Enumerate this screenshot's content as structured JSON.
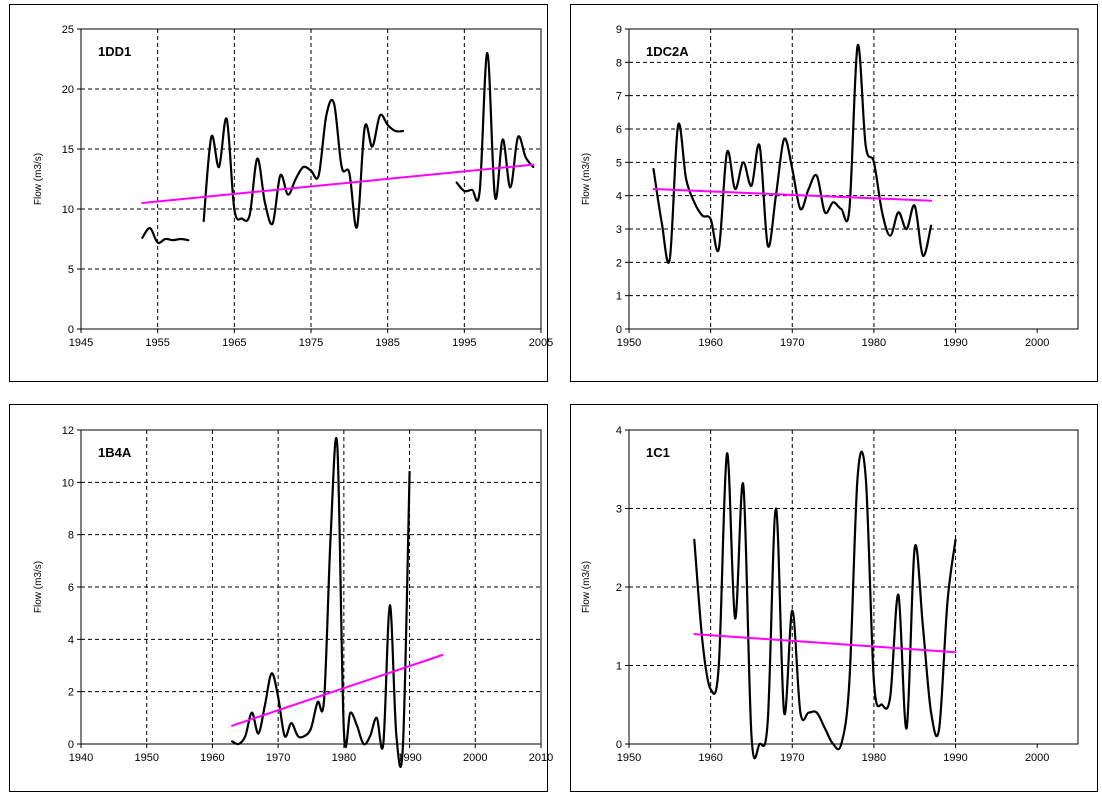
{
  "chart_data": [
    {
      "type": "line",
      "title": "1DD1",
      "ylabel": "Flow (m3/s)",
      "xlim": [
        1945,
        2005
      ],
      "ylim": [
        0,
        25
      ],
      "x_ticks": [
        1945,
        1955,
        1965,
        1975,
        1985,
        1995,
        2005
      ],
      "y_ticks": [
        0,
        5,
        10,
        15,
        20,
        25
      ],
      "grid": true,
      "series": [
        {
          "color": "#000000",
          "segments": [
            {
              "x": [
                1953,
                1954,
                1955,
                1956,
                1957,
                1958,
                1959
              ],
              "y": [
                7.6,
                8.4,
                7.2,
                7.5,
                7.4,
                7.5,
                7.4
              ]
            },
            {
              "x": [
                1961,
                1962,
                1963,
                1964,
                1965,
                1966,
                1967,
                1968,
                1969,
                1970,
                1971,
                1972,
                1973,
                1974,
                1975,
                1976,
                1977,
                1978,
                1979,
                1980,
                1981,
                1982,
                1983,
                1984,
                1985,
                1986,
                1987
              ],
              "y": [
                9.0,
                16.0,
                13.5,
                17.5,
                10.0,
                9.2,
                9.5,
                14.2,
                10.5,
                8.8,
                12.8,
                11.2,
                12.5,
                13.5,
                13.2,
                12.8,
                17.8,
                18.8,
                13.5,
                13.0,
                8.5,
                16.8,
                15.2,
                17.8,
                17.0,
                16.5,
                16.5
              ]
            },
            {
              "x": [
                1994,
                1995,
                1996,
                1997,
                1998,
                1999,
                2000,
                2001,
                2002,
                2003,
                2004
              ],
              "y": [
                12.2,
                11.5,
                11.6,
                11.5,
                23.0,
                11.0,
                15.8,
                11.8,
                16.0,
                14.3,
                13.5
              ]
            }
          ]
        },
        {
          "color": "#ff00ff",
          "segments": [
            {
              "x": [
                1953,
                2004
              ],
              "y": [
                10.5,
                13.7
              ]
            }
          ]
        }
      ]
    },
    {
      "type": "line",
      "title": "1DC2A",
      "ylabel": "Flow (m3/s)",
      "xlim": [
        1950,
        2005
      ],
      "ylim": [
        0,
        9
      ],
      "x_ticks": [
        1950,
        1960,
        1970,
        1980,
        1990,
        2000
      ],
      "y_ticks": [
        0,
        1,
        2,
        3,
        4,
        5,
        6,
        7,
        8,
        9
      ],
      "grid": true,
      "series": [
        {
          "color": "#000000",
          "segments": [
            {
              "x": [
                1953,
                1954,
                1955,
                1956,
                1957,
                1958,
                1959,
                1960,
                1961,
                1962,
                1963,
                1964,
                1965,
                1966,
                1967,
                1968,
                1969,
                1970,
                1971,
                1972,
                1973,
                1974,
                1975,
                1976,
                1977,
                1978,
                1979,
                1980,
                1981,
                1982,
                1983,
                1984,
                1985,
                1986,
                1987
              ],
              "y": [
                4.8,
                3.2,
                2.1,
                6.1,
                4.5,
                3.8,
                3.4,
                3.3,
                2.4,
                5.3,
                4.2,
                5.0,
                4.3,
                5.5,
                2.5,
                4.0,
                5.7,
                4.8,
                3.6,
                4.2,
                4.6,
                3.5,
                3.8,
                3.6,
                3.6,
                8.5,
                5.5,
                5.0,
                3.5,
                2.8,
                3.5,
                3.0,
                3.7,
                2.2,
                3.1
              ]
            }
          ]
        },
        {
          "color": "#ff00ff",
          "segments": [
            {
              "x": [
                1953,
                1987
              ],
              "y": [
                4.2,
                3.85
              ]
            }
          ]
        }
      ]
    },
    {
      "type": "line",
      "title": "1B4A",
      "ylabel": "Flow (m3/s)",
      "xlim": [
        1940,
        2010
      ],
      "ylim": [
        0,
        12
      ],
      "x_ticks": [
        1940,
        1950,
        1960,
        1970,
        1980,
        1990,
        2000,
        2010
      ],
      "y_ticks": [
        0,
        2,
        4,
        6,
        8,
        10,
        12
      ],
      "grid": true,
      "series": [
        {
          "color": "#000000",
          "segments": [
            {
              "x": [
                1963,
                1964,
                1965,
                1966,
                1967,
                1968,
                1969,
                1970,
                1971,
                1972,
                1973,
                1974,
                1975,
                1976,
                1977,
                1978,
                1979,
                1980,
                1981,
                1982,
                1983,
                1984,
                1985,
                1986,
                1987,
                1988,
                1989,
                1990
              ],
              "y": [
                0.1,
                0.0,
                0.3,
                1.2,
                0.4,
                1.5,
                2.7,
                1.8,
                0.3,
                0.8,
                0.3,
                0.3,
                0.6,
                1.6,
                1.7,
                8.0,
                11.4,
                0.5,
                1.2,
                0.7,
                0.0,
                0.3,
                1.0,
                0.0,
                5.3,
                0.3,
                0.0,
                10.4
              ]
            }
          ]
        },
        {
          "color": "#ff00ff",
          "segments": [
            {
              "x": [
                1963,
                1995
              ],
              "y": [
                0.7,
                3.4
              ]
            }
          ]
        }
      ]
    },
    {
      "type": "line",
      "title": "1C1",
      "ylabel": "Flow (m3/s)",
      "xlim": [
        1950,
        2005
      ],
      "ylim": [
        0,
        4
      ],
      "x_ticks": [
        1950,
        1960,
        1970,
        1980,
        1990,
        2000
      ],
      "y_ticks": [
        0,
        1,
        2,
        3,
        4
      ],
      "grid": true,
      "series": [
        {
          "color": "#000000",
          "segments": [
            {
              "x": [
                1958,
                1959,
                1960,
                1961,
                1962,
                1963,
                1964,
                1965,
                1966,
                1967,
                1968,
                1969,
                1970,
                1971,
                1972,
                1973,
                1974,
                1975,
                1976,
                1977,
                1978,
                1979,
                1980,
                1981,
                1982,
                1983,
                1984,
                1985,
                1986,
                1987,
                1988,
                1989,
                1990
              ],
              "y": [
                2.6,
                1.3,
                0.7,
                1.0,
                3.7,
                1.6,
                3.3,
                0.1,
                0.0,
                0.3,
                3.0,
                0.4,
                1.7,
                0.4,
                0.4,
                0.4,
                0.2,
                0.0,
                0.0,
                0.8,
                3.4,
                3.4,
                0.8,
                0.5,
                0.6,
                1.9,
                0.2,
                2.5,
                1.5,
                0.4,
                0.2,
                1.8,
                2.6
              ]
            }
          ]
        },
        {
          "color": "#ff00ff",
          "segments": [
            {
              "x": [
                1958,
                1990
              ],
              "y": [
                1.4,
                1.17
              ]
            }
          ]
        }
      ]
    }
  ]
}
